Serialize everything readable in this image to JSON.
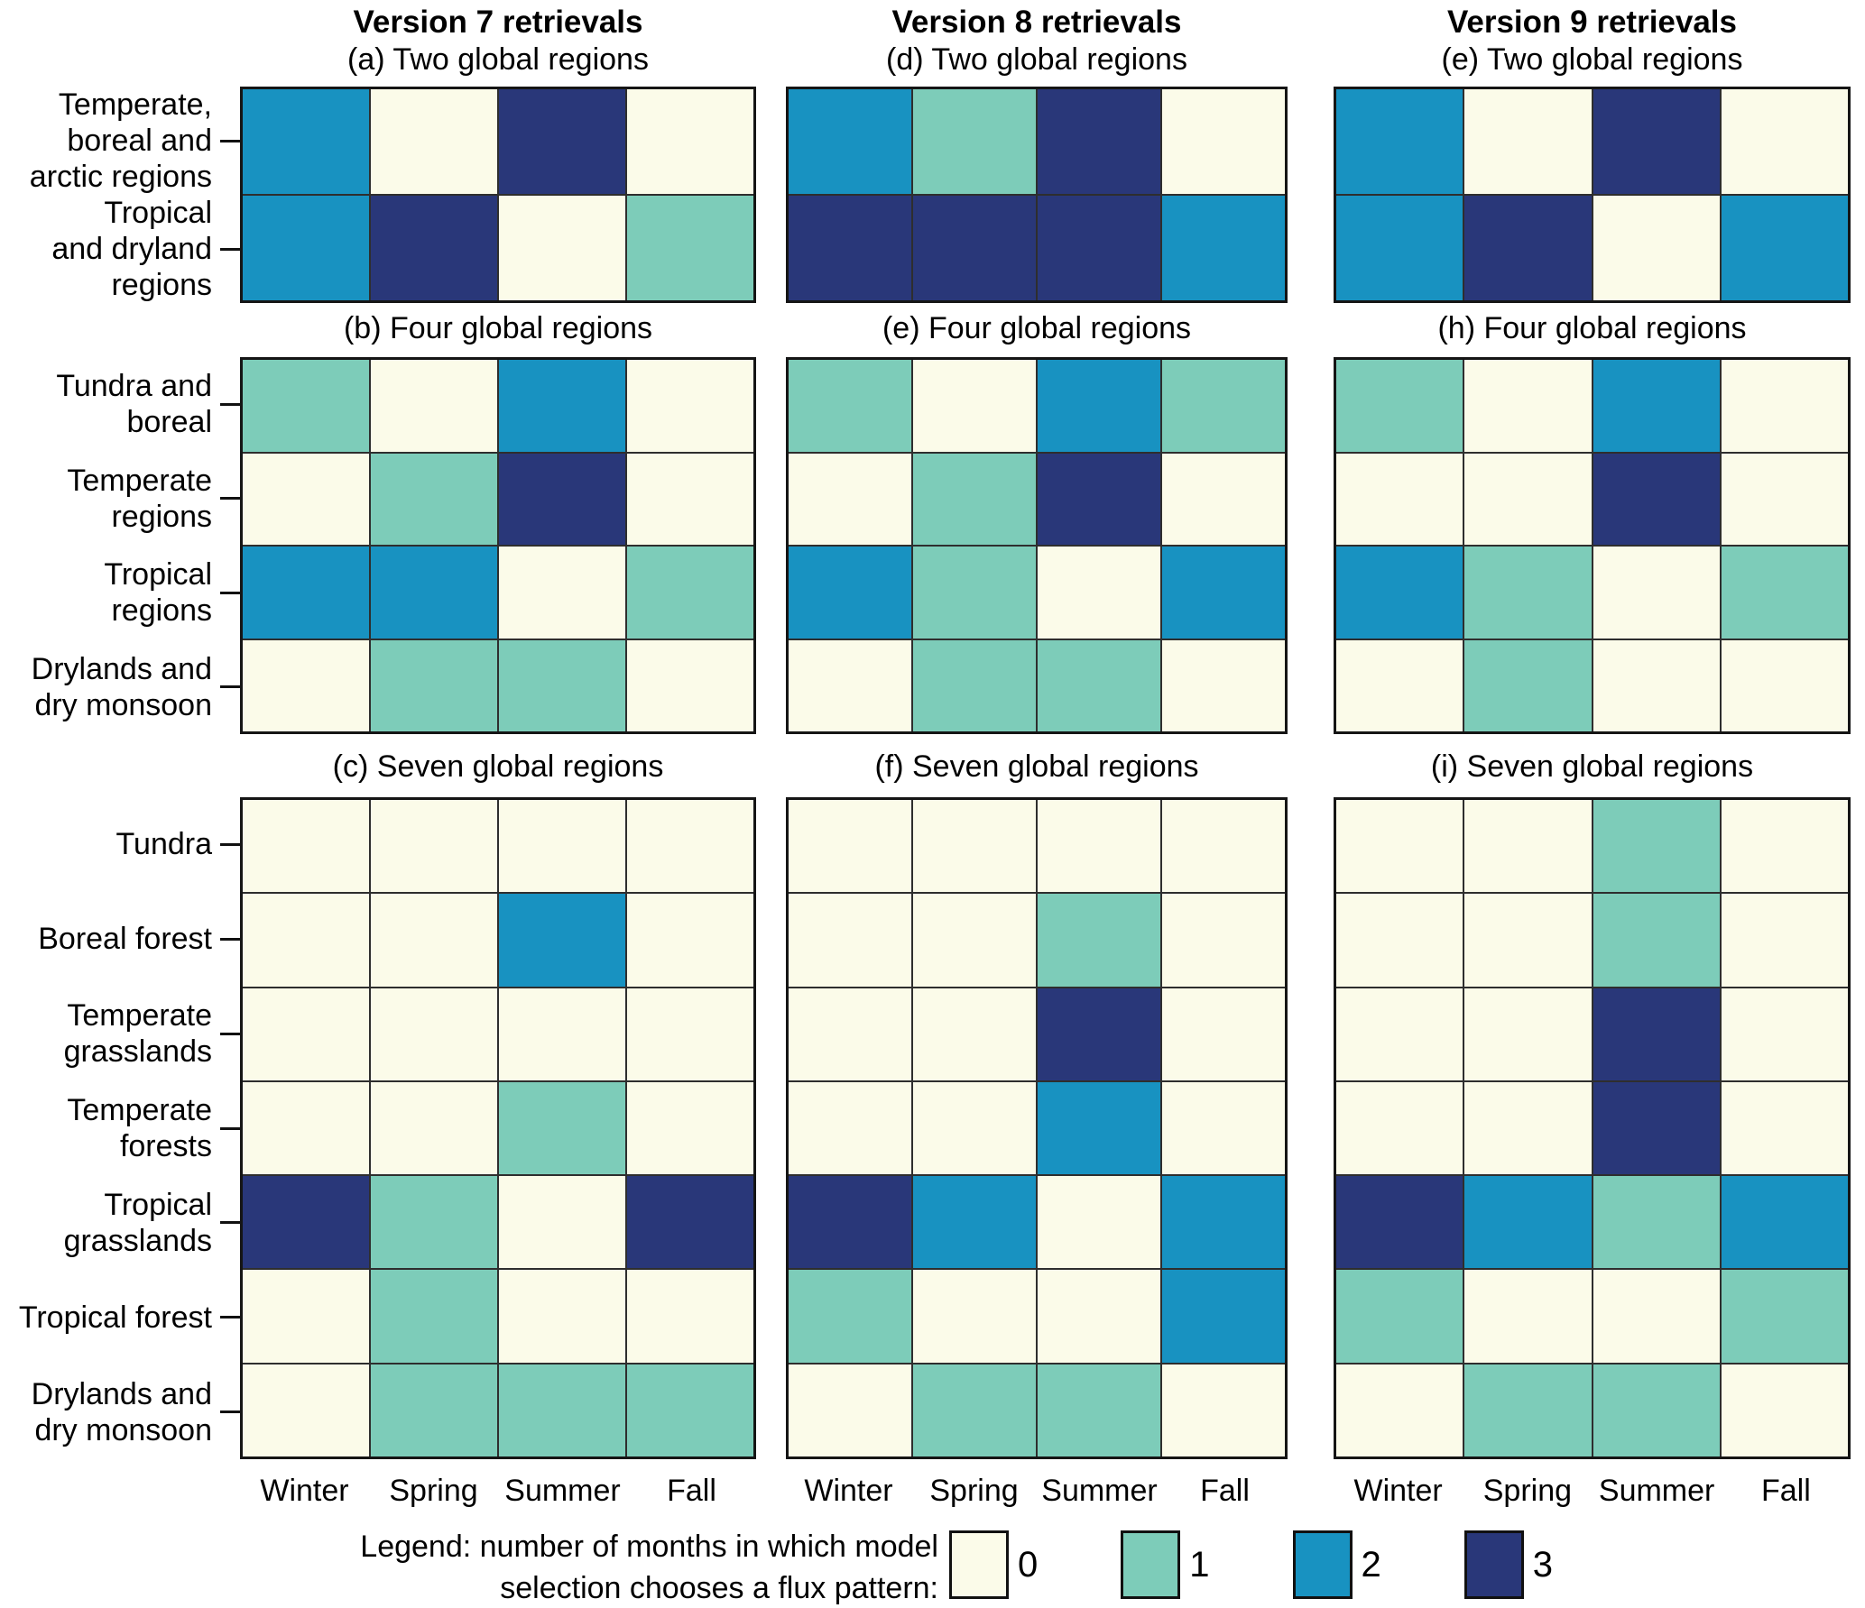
{
  "figure": {
    "column_titles": [
      "Version 7 retrievals",
      "Version 8 retrievals",
      "Version 9 retrievals"
    ],
    "season_labels": [
      "Winter",
      "Spring",
      "Summer",
      "Fall"
    ],
    "value_colors": {
      "0": "#fbfbe9",
      "1": "#7dccb9",
      "2": "#1892c1",
      "3": "#293779"
    },
    "legend": {
      "caption": "Legend: number of months in which model\nselection chooses a flux pattern:",
      "entries": [
        {
          "value": "0",
          "color": "#fbfbe9"
        },
        {
          "value": "1",
          "color": "#7dccb9"
        },
        {
          "value": "2",
          "color": "#1892c1"
        },
        {
          "value": "3",
          "color": "#293779"
        }
      ]
    }
  },
  "chart_data": [
    {
      "id": "a",
      "type": "heatmap",
      "title": "(a) Two global regions",
      "retrieval": "Version 7 retrievals",
      "columns": [
        "Winter",
        "Spring",
        "Summer",
        "Fall"
      ],
      "rows": [
        "Temperate, boreal and arctic regions",
        "Tropical and dryland regions"
      ],
      "row_label_lines": [
        [
          "Temperate,",
          "boreal and",
          "arctic regions"
        ],
        [
          "Tropical",
          "and dryland",
          "regions"
        ]
      ],
      "values": [
        [
          2,
          0,
          3,
          0
        ],
        [
          2,
          3,
          0,
          1
        ]
      ]
    },
    {
      "id": "b",
      "type": "heatmap",
      "title": "(b) Four global regions",
      "retrieval": "Version 7 retrievals",
      "columns": [
        "Winter",
        "Spring",
        "Summer",
        "Fall"
      ],
      "rows": [
        "Tundra and boreal",
        "Temperate regions",
        "Tropical regions",
        "Drylands and dry monsoon"
      ],
      "row_label_lines": [
        [
          "Tundra and",
          "boreal"
        ],
        [
          "Temperate",
          "regions"
        ],
        [
          "Tropical",
          "regions"
        ],
        [
          "Drylands and",
          "dry monsoon"
        ]
      ],
      "values": [
        [
          1,
          0,
          2,
          0
        ],
        [
          0,
          1,
          3,
          0
        ],
        [
          2,
          2,
          0,
          1
        ],
        [
          0,
          1,
          1,
          0
        ]
      ]
    },
    {
      "id": "c",
      "type": "heatmap",
      "title": "(c) Seven global regions",
      "retrieval": "Version 7 retrievals",
      "columns": [
        "Winter",
        "Spring",
        "Summer",
        "Fall"
      ],
      "rows": [
        "Tundra",
        "Boreal forest",
        "Temperate grasslands",
        "Temperate forests",
        "Tropical grasslands",
        "Tropical forest",
        "Drylands and dry monsoon"
      ],
      "row_label_lines": [
        [
          "Tundra"
        ],
        [
          "Boreal forest"
        ],
        [
          "Temperate",
          "grasslands"
        ],
        [
          "Temperate",
          "forests"
        ],
        [
          "Tropical",
          "grasslands"
        ],
        [
          "Tropical forest"
        ],
        [
          "Drylands and",
          "dry monsoon"
        ]
      ],
      "values": [
        [
          0,
          0,
          0,
          0
        ],
        [
          0,
          0,
          2,
          0
        ],
        [
          0,
          0,
          0,
          0
        ],
        [
          0,
          0,
          1,
          0
        ],
        [
          3,
          1,
          0,
          3
        ],
        [
          0,
          1,
          0,
          0
        ],
        [
          0,
          1,
          1,
          1
        ]
      ]
    },
    {
      "id": "d",
      "type": "heatmap",
      "title": "(d) Two global regions",
      "retrieval": "Version 8 retrievals",
      "columns": [
        "Winter",
        "Spring",
        "Summer",
        "Fall"
      ],
      "rows": [
        "Temperate, boreal and arctic regions",
        "Tropical and dryland regions"
      ],
      "values": [
        [
          2,
          1,
          3,
          0
        ],
        [
          3,
          3,
          3,
          2
        ]
      ]
    },
    {
      "id": "e-mid",
      "type": "heatmap",
      "title": "(e) Four global regions",
      "retrieval": "Version 8 retrievals",
      "columns": [
        "Winter",
        "Spring",
        "Summer",
        "Fall"
      ],
      "rows": [
        "Tundra and boreal",
        "Temperate regions",
        "Tropical regions",
        "Drylands and dry monsoon"
      ],
      "values": [
        [
          1,
          0,
          2,
          1
        ],
        [
          0,
          1,
          3,
          0
        ],
        [
          2,
          1,
          0,
          2
        ],
        [
          0,
          1,
          1,
          0
        ]
      ]
    },
    {
      "id": "f",
      "type": "heatmap",
      "title": "(f) Seven global regions",
      "retrieval": "Version 8 retrievals",
      "columns": [
        "Winter",
        "Spring",
        "Summer",
        "Fall"
      ],
      "rows": [
        "Tundra",
        "Boreal forest",
        "Temperate grasslands",
        "Temperate forests",
        "Tropical grasslands",
        "Tropical forest",
        "Drylands and dry monsoon"
      ],
      "values": [
        [
          0,
          0,
          0,
          0
        ],
        [
          0,
          0,
          1,
          0
        ],
        [
          0,
          0,
          3,
          0
        ],
        [
          0,
          0,
          2,
          0
        ],
        [
          3,
          2,
          0,
          2
        ],
        [
          1,
          0,
          0,
          2
        ],
        [
          0,
          1,
          1,
          0
        ]
      ]
    },
    {
      "id": "e-top",
      "type": "heatmap",
      "title": "(e) Two global regions",
      "retrieval": "Version 9 retrievals",
      "columns": [
        "Winter",
        "Spring",
        "Summer",
        "Fall"
      ],
      "rows": [
        "Temperate, boreal and arctic regions",
        "Tropical and dryland regions"
      ],
      "values": [
        [
          2,
          0,
          3,
          0
        ],
        [
          2,
          3,
          0,
          2
        ]
      ]
    },
    {
      "id": "h",
      "type": "heatmap",
      "title": "(h) Four global regions",
      "retrieval": "Version 9 retrievals",
      "columns": [
        "Winter",
        "Spring",
        "Summer",
        "Fall"
      ],
      "rows": [
        "Tundra and boreal",
        "Temperate regions",
        "Tropical regions",
        "Drylands and dry monsoon"
      ],
      "values": [
        [
          1,
          0,
          2,
          0
        ],
        [
          0,
          0,
          3,
          0
        ],
        [
          2,
          1,
          0,
          1
        ],
        [
          0,
          1,
          0,
          0
        ]
      ]
    },
    {
      "id": "i",
      "type": "heatmap",
      "title": "(i) Seven global regions",
      "retrieval": "Version 9 retrievals",
      "columns": [
        "Winter",
        "Spring",
        "Summer",
        "Fall"
      ],
      "rows": [
        "Tundra",
        "Boreal forest",
        "Temperate grasslands",
        "Temperate forests",
        "Tropical grasslands",
        "Tropical forest",
        "Drylands and dry monsoon"
      ],
      "values": [
        [
          0,
          0,
          1,
          0
        ],
        [
          0,
          0,
          1,
          0
        ],
        [
          0,
          0,
          3,
          0
        ],
        [
          0,
          0,
          3,
          0
        ],
        [
          3,
          2,
          1,
          2
        ],
        [
          1,
          0,
          0,
          1
        ],
        [
          0,
          1,
          1,
          0
        ]
      ]
    }
  ]
}
